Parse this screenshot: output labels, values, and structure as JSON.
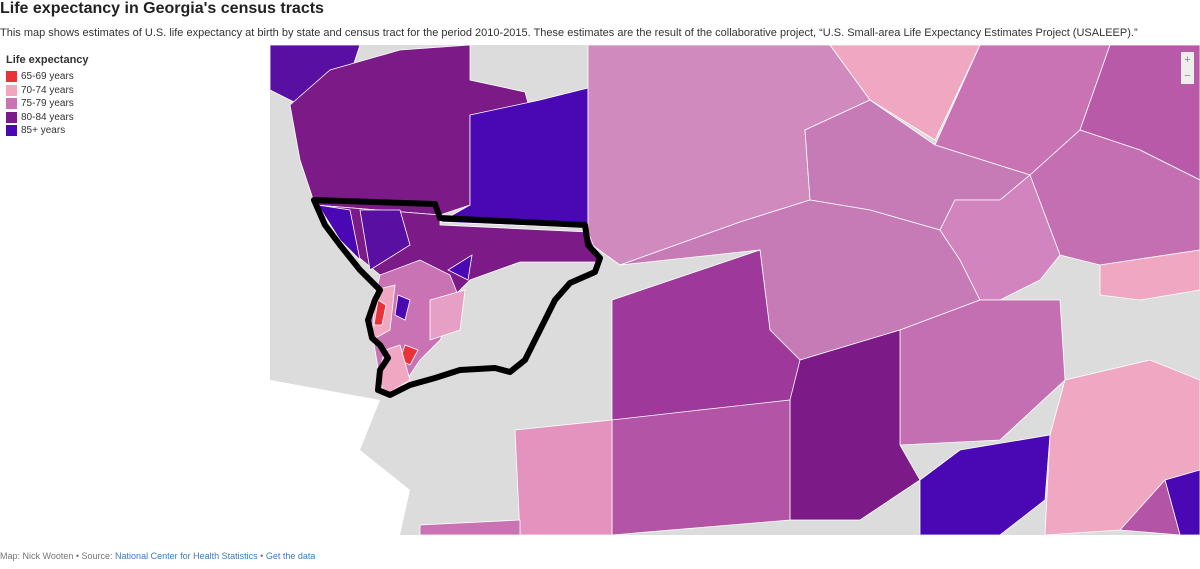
{
  "header": {
    "title": "Life expectancy in Georgia's census tracts",
    "subtitle": "This map shows estimates of U.S. life expectancy at birth by state and census tract for the period 2010-2015. These estimates are the result of the collaborative project, “U.S. Small-area Life Expectancy Estimates Project (USALEEP).”"
  },
  "legend": {
    "title": "Life expectancy",
    "items": [
      {
        "label": "65-69 years",
        "color": "#e8333a"
      },
      {
        "label": "70-74 years",
        "color": "#f2a6bd"
      },
      {
        "label": "75-79 years",
        "color": "#c973b4"
      },
      {
        "label": "80-84 years",
        "color": "#7c1a87"
      },
      {
        "label": "85+ years",
        "color": "#4a08b4"
      }
    ]
  },
  "zoom": {
    "in": "+",
    "out": "−"
  },
  "footer": {
    "credit": "Map: Nick Wooten • Source:",
    "source": "National Center for Health Statistics",
    "separator": "•",
    "data_link": "Get the data"
  }
}
